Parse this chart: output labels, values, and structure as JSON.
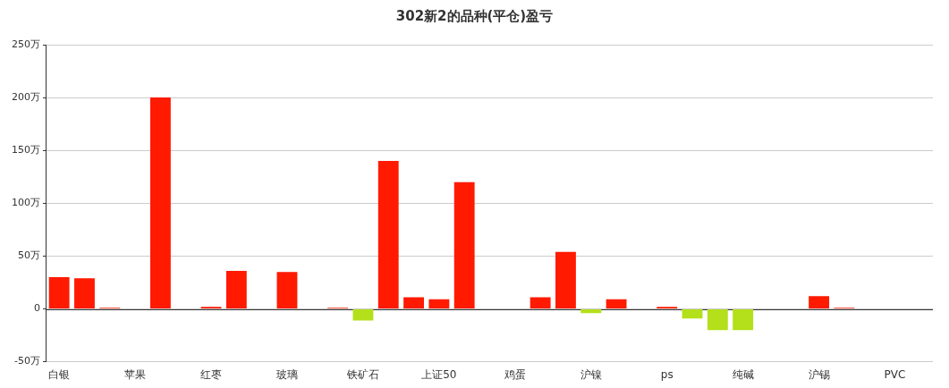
{
  "chart_data": {
    "type": "bar",
    "title": "302新2的品种(平仓)盈亏",
    "categories": [
      "白银",
      null,
      null,
      "苹果",
      null,
      null,
      "红枣",
      null,
      null,
      "玻璃",
      null,
      null,
      "铁矿石",
      null,
      null,
      "上证50",
      null,
      null,
      "鸡蛋",
      null,
      null,
      "沪镍",
      null,
      null,
      "ps",
      null,
      null,
      "纯碱",
      null,
      null,
      "沪锡",
      null,
      null,
      "PVC",
      null
    ],
    "values": [
      30,
      29,
      1,
      0,
      200,
      0,
      2,
      36,
      0,
      35,
      0,
      1,
      -11,
      140,
      11,
      9,
      120,
      0,
      0,
      11,
      54,
      -4,
      9,
      0,
      2,
      -9,
      -20,
      -20,
      0,
      0,
      12,
      1,
      0,
      0,
      0
    ],
    "colors": [
      "#ff1a00",
      "#ff1a00",
      "#ff1a00",
      "#ff1a00",
      "#ff1a00",
      "#ff1a00",
      "#ff1a00",
      "#ff1a00",
      "#ff1a00",
      "#ff1a00",
      "#ff1a00",
      "#ff1a00",
      "#b3e01a",
      "#ff1a00",
      "#ff1a00",
      "#ff1a00",
      "#ff1a00",
      "#ff1a00",
      "#b3e01a",
      "#ff1a00",
      "#ff1a00",
      "#b3e01a",
      "#ff1a00",
      "#ff1a00",
      "#ff1a00",
      "#b3e01a",
      "#b3e01a",
      "#b3e01a",
      "#ff1a00",
      "#b3e01a",
      "#ff1a00",
      "#ff1a00",
      "#b3e01a",
      "#ff1a00",
      "#ff1a00"
    ],
    "ylim": [
      -50,
      250
    ],
    "yticks": [
      {
        "value": -50,
        "label": "-50万"
      },
      {
        "value": 0,
        "label": "0"
      },
      {
        "value": 50,
        "label": "50万"
      },
      {
        "value": 100,
        "label": "100万"
      },
      {
        "value": 150,
        "label": "150万"
      },
      {
        "value": 200,
        "label": "200万"
      },
      {
        "value": 250,
        "label": "250万"
      }
    ],
    "grid": "y",
    "legend": false
  }
}
